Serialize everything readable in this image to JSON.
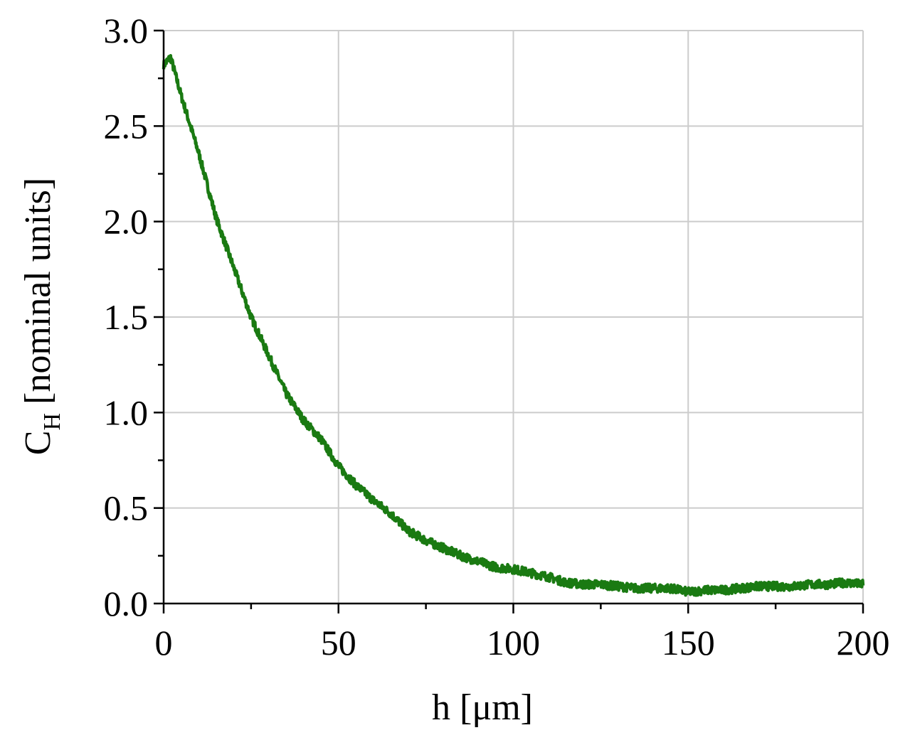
{
  "chart_data": {
    "type": "line",
    "x_ticks": [
      0,
      50,
      100,
      150,
      200
    ],
    "y_ticks": [
      "0.0",
      "0.5",
      "1.0",
      "1.5",
      "2.0",
      "2.5",
      "3.0"
    ],
    "xlim": [
      0,
      200
    ],
    "ylim": [
      0,
      3.0
    ],
    "xlabel": "h [μm]",
    "ylabel_main": "C",
    "ylabel_sub": "H",
    "ylabel_rest": "[nominal units]",
    "grid": true,
    "series": [
      {
        "color": "#1a7a12",
        "x": [
          0,
          2,
          5,
          10,
          15,
          20,
          25,
          30,
          35,
          40,
          45,
          50,
          55,
          60,
          65,
          70,
          75,
          80,
          85,
          90,
          95,
          100,
          105,
          110,
          115,
          120,
          125,
          130,
          135,
          140,
          145,
          150,
          155,
          160,
          165,
          170,
          175,
          180,
          185,
          190,
          195,
          200
        ],
        "y": [
          2.82,
          2.86,
          2.66,
          2.36,
          2.02,
          1.76,
          1.5,
          1.3,
          1.1,
          0.96,
          0.86,
          0.72,
          0.62,
          0.54,
          0.47,
          0.38,
          0.33,
          0.29,
          0.25,
          0.22,
          0.19,
          0.18,
          0.16,
          0.14,
          0.11,
          0.1,
          0.1,
          0.09,
          0.08,
          0.08,
          0.08,
          0.06,
          0.07,
          0.07,
          0.08,
          0.09,
          0.09,
          0.09,
          0.1,
          0.1,
          0.11,
          0.1
        ]
      }
    ]
  }
}
